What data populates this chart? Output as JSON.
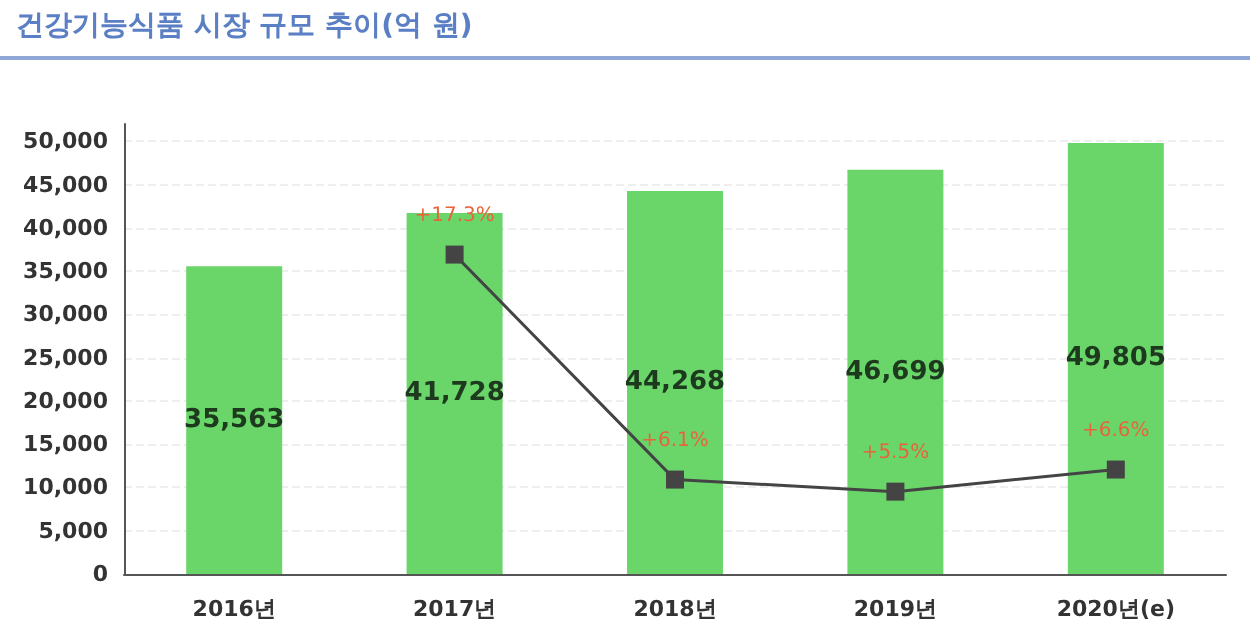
{
  "chart_data": {
    "type": "bar",
    "title": "건강기능식품 시장 규모 추이(억 원)",
    "categories": [
      "2016년",
      "2017년",
      "2018년",
      "2019년",
      "2020년(e)"
    ],
    "series": [
      {
        "color": "#6ad66a",
        "values": [
          35563,
          41728,
          44268,
          46699,
          49805
        ],
        "value_labels": [
          "35,563",
          "41,728",
          "44,268",
          "46,699",
          "49,805"
        ]
      },
      {
        "type": "line",
        "axis": "y2",
        "color": "#444444",
        "marker": "square",
        "values": [
          17.3,
          6.1,
          5.5,
          6.6
        ],
        "x": [
          "2017년",
          "2018년",
          "2019년",
          "2020년(e)"
        ],
        "value_labels": [
          "+17.3%",
          "+6.1%",
          "+5.5%",
          "+6.6%"
        ]
      }
    ],
    "ylim": [
      0,
      52000
    ],
    "yticks": [
      0,
      {
        "value": 5000,
        "label": "5,000"
      },
      {
        "value": 10000,
        "label": "10,000"
      },
      {
        "value": 15000,
        "label": "15,000"
      },
      {
        "value": 20000,
        "label": "20,000"
      },
      {
        "value": 25000,
        "label": "25,000"
      },
      {
        "value": 30000,
        "label": "30,000"
      },
      {
        "value": 35000,
        "label": "35,000"
      },
      {
        "value": 40000,
        "label": "40,000"
      },
      {
        "value": 45000,
        "label": "45,000"
      },
      {
        "value": 50000,
        "label": "50,000"
      }
    ],
    "y2lim": [
      1.4,
      23.8
    ],
    "grid": "y"
  }
}
